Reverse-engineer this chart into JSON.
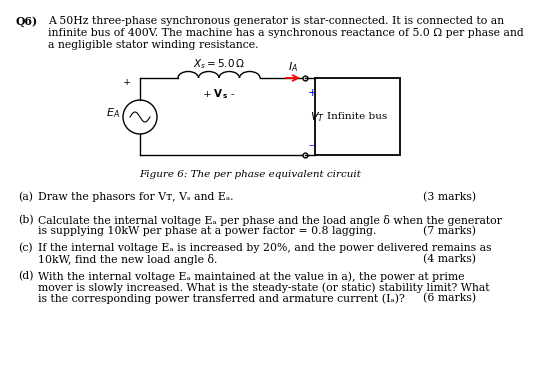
{
  "bg_color": "#ffffff",
  "text_color": "#000000",
  "q_label": "Q6)",
  "intro_line1": "A 50Hz three-phase synchronous generator is star-connected. It is connected to an",
  "intro_line2": "infinite bus of 400V. The machine has a synchronous reactance of 5.0 Ω per phase and",
  "intro_line3": "a negligible stator winding resistance.",
  "figure_caption": "Figure 6: The per phase equivalent circuit",
  "xs_label": "X_s = 5.0Ω",
  "ia_label": "I_A",
  "vt_label": "V_T",
  "vs_label": "V_s",
  "ea_label": "E_A",
  "infinite_bus_label": "Infinite bus",
  "parts": [
    {
      "label": "(a)",
      "text1": "Draw the phasors for Vᴛ, Vₛ and Eₐ.",
      "text2": "",
      "marks": "(3 marks)"
    },
    {
      "label": "(b)",
      "text1": "Calculate the internal voltage Eₐ per phase and the load angle δ when the generator",
      "text2": "is supplying 10kW per phase at a power factor = 0.8 lagging.",
      "marks": "(7 marks)"
    },
    {
      "label": "(c)",
      "text1": "If the internal voltage Eₐ is increased by 20%, and the power delivered remains as",
      "text2": "10kW, find the new load angle δ.",
      "marks": "(4 marks)"
    },
    {
      "label": "(d)",
      "text1": "With the internal voltage Eₐ maintained at the value in a), the power at prime",
      "text2": "mover is slowly increased. What is the steady-state (or static) stability limit? What",
      "text3": "is the corresponding power transferred and armature current (Iₐ)?",
      "marks": "(6 marks)"
    }
  ]
}
